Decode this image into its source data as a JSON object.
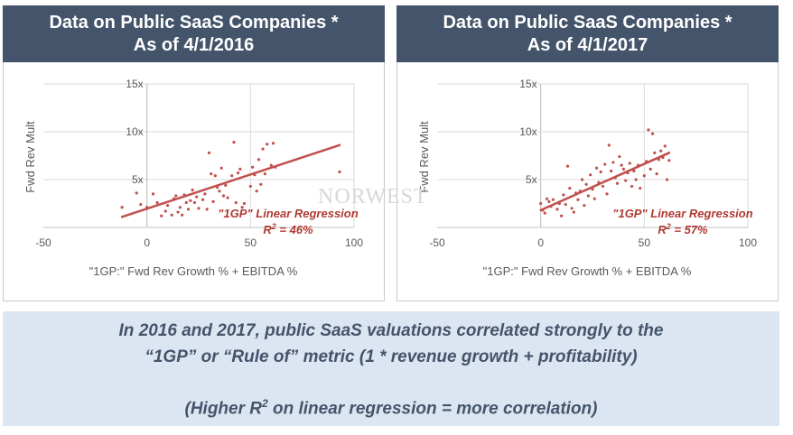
{
  "panels": [
    {
      "title_line1": "Data on Public SaaS Companies *",
      "title_line2": "As of 4/1/2016"
    },
    {
      "title_line1": "Data on Public SaaS Companies *",
      "title_line2": "As of 4/1/2017"
    }
  ],
  "watermark": "NORWEST",
  "summary": {
    "line1": "In 2016 and 2017, public SaaS valuations correlated strongly to the",
    "line2": "“1GP” or “Rule of” metric (1 * revenue growth + profitability)",
    "line3_prefix": "(Higher R",
    "line3_sup": "2",
    "line3_suffix": " on linear regression = more correlation)"
  },
  "colors": {
    "header_bg": "#44546a",
    "point": "#c0504d",
    "regression": "#c0504d",
    "summary_bg": "#dce6f2",
    "summary_text": "#44546a"
  },
  "chart_data": [
    {
      "type": "scatter",
      "xlabel": "\"1GP:\" Fwd Rev Growth % + EBITDA %",
      "ylabel": "Fwd Rev Mult",
      "xlim": [
        -50,
        100
      ],
      "ylim": [
        0,
        15
      ],
      "xticks": [
        "-50",
        "0",
        "50",
        "100"
      ],
      "yticks": [
        "5x",
        "10x",
        "15x"
      ],
      "regression": {
        "x": [
          -12,
          93
        ],
        "y": [
          1.1,
          8.6
        ],
        "label": "\"1GP\" Linear Regression",
        "r2_prefix": "R",
        "r2_sup": "2",
        "r2_value": " = 46%"
      },
      "points": [
        [
          -12,
          2.1
        ],
        [
          -5,
          3.6
        ],
        [
          -3,
          2.4
        ],
        [
          0,
          2.1
        ],
        [
          3,
          3.5
        ],
        [
          5,
          2.6
        ],
        [
          7,
          1.2
        ],
        [
          9,
          1.7
        ],
        [
          10,
          2.3
        ],
        [
          12,
          1.3
        ],
        [
          13,
          3.0
        ],
        [
          14,
          3.3
        ],
        [
          15,
          1.6
        ],
        [
          16,
          2.1
        ],
        [
          17,
          1.3
        ],
        [
          18,
          3.4
        ],
        [
          19,
          2.6
        ],
        [
          20,
          1.9
        ],
        [
          21,
          2.8
        ],
        [
          22,
          3.9
        ],
        [
          23,
          2.6
        ],
        [
          24,
          3.2
        ],
        [
          25,
          2.0
        ],
        [
          27,
          2.9
        ],
        [
          28,
          3.5
        ],
        [
          29,
          1.9
        ],
        [
          30,
          7.8
        ],
        [
          31,
          5.6
        ],
        [
          32,
          2.7
        ],
        [
          33,
          5.4
        ],
        [
          34,
          4.2
        ],
        [
          35,
          3.8
        ],
        [
          36,
          6.2
        ],
        [
          37,
          3.3
        ],
        [
          38,
          4.4
        ],
        [
          39,
          3.1
        ],
        [
          41,
          5.4
        ],
        [
          42,
          8.9
        ],
        [
          43,
          2.6
        ],
        [
          44,
          5.7
        ],
        [
          45,
          6.1
        ],
        [
          46,
          2.1
        ],
        [
          47,
          2.5
        ],
        [
          50,
          4.3
        ],
        [
          51,
          6.3
        ],
        [
          52,
          5.5
        ],
        [
          53,
          3.8
        ],
        [
          54,
          7.1
        ],
        [
          55,
          4.5
        ],
        [
          56,
          8.2
        ],
        [
          57,
          5.6
        ],
        [
          58,
          8.7
        ],
        [
          60,
          6.5
        ],
        [
          61,
          8.8
        ],
        [
          62,
          6.3
        ],
        [
          93,
          5.8
        ]
      ]
    },
    {
      "type": "scatter",
      "xlabel": "\"1GP:\" Fwd Rev Growth % + EBITDA %",
      "ylabel": "Fwd Rev Mult",
      "xlim": [
        -50,
        100
      ],
      "ylim": [
        0,
        15
      ],
      "xticks": [
        "-50",
        "0",
        "50",
        "100"
      ],
      "yticks": [
        "5x",
        "10x",
        "15x"
      ],
      "regression": {
        "x": [
          0,
          62
        ],
        "y": [
          1.8,
          7.8
        ],
        "label": "\"1GP\" Linear Regression",
        "r2_prefix": "R",
        "r2_sup": "2",
        "r2_value": " = 57%"
      },
      "points": [
        [
          0,
          2.5
        ],
        [
          1,
          1.8
        ],
        [
          2,
          1.5
        ],
        [
          3,
          3.0
        ],
        [
          4,
          2.7
        ],
        [
          5,
          2.2
        ],
        [
          6,
          2.9
        ],
        [
          8,
          1.9
        ],
        [
          9,
          2.5
        ],
        [
          10,
          1.2
        ],
        [
          11,
          3.4
        ],
        [
          12,
          2.4
        ],
        [
          13,
          6.4
        ],
        [
          14,
          4.1
        ],
        [
          15,
          2.0
        ],
        [
          16,
          1.6
        ],
        [
          17,
          3.6
        ],
        [
          18,
          2.9
        ],
        [
          19,
          3.8
        ],
        [
          20,
          5.0
        ],
        [
          21,
          2.3
        ],
        [
          22,
          4.5
        ],
        [
          23,
          3.3
        ],
        [
          24,
          5.5
        ],
        [
          25,
          4.0
        ],
        [
          26,
          3.0
        ],
        [
          27,
          6.2
        ],
        [
          28,
          4.7
        ],
        [
          29,
          5.8
        ],
        [
          30,
          4.3
        ],
        [
          31,
          6.6
        ],
        [
          32,
          3.5
        ],
        [
          33,
          8.6
        ],
        [
          34,
          5.9
        ],
        [
          35,
          6.8
        ],
        [
          36,
          5.2
        ],
        [
          37,
          4.6
        ],
        [
          38,
          7.4
        ],
        [
          39,
          6.5
        ],
        [
          40,
          6.1
        ],
        [
          41,
          4.9
        ],
        [
          42,
          5.7
        ],
        [
          43,
          6.7
        ],
        [
          44,
          4.3
        ],
        [
          45,
          5.9
        ],
        [
          46,
          5.0
        ],
        [
          47,
          6.5
        ],
        [
          48,
          4.1
        ],
        [
          50,
          5.4
        ],
        [
          51,
          6.9
        ],
        [
          52,
          10.2
        ],
        [
          53,
          6.1
        ],
        [
          54,
          9.8
        ],
        [
          55,
          7.8
        ],
        [
          56,
          5.6
        ],
        [
          57,
          7.1
        ],
        [
          58,
          8.0
        ],
        [
          59,
          7.3
        ],
        [
          60,
          8.5
        ],
        [
          61,
          5.0
        ],
        [
          62,
          7.0
        ]
      ]
    }
  ]
}
